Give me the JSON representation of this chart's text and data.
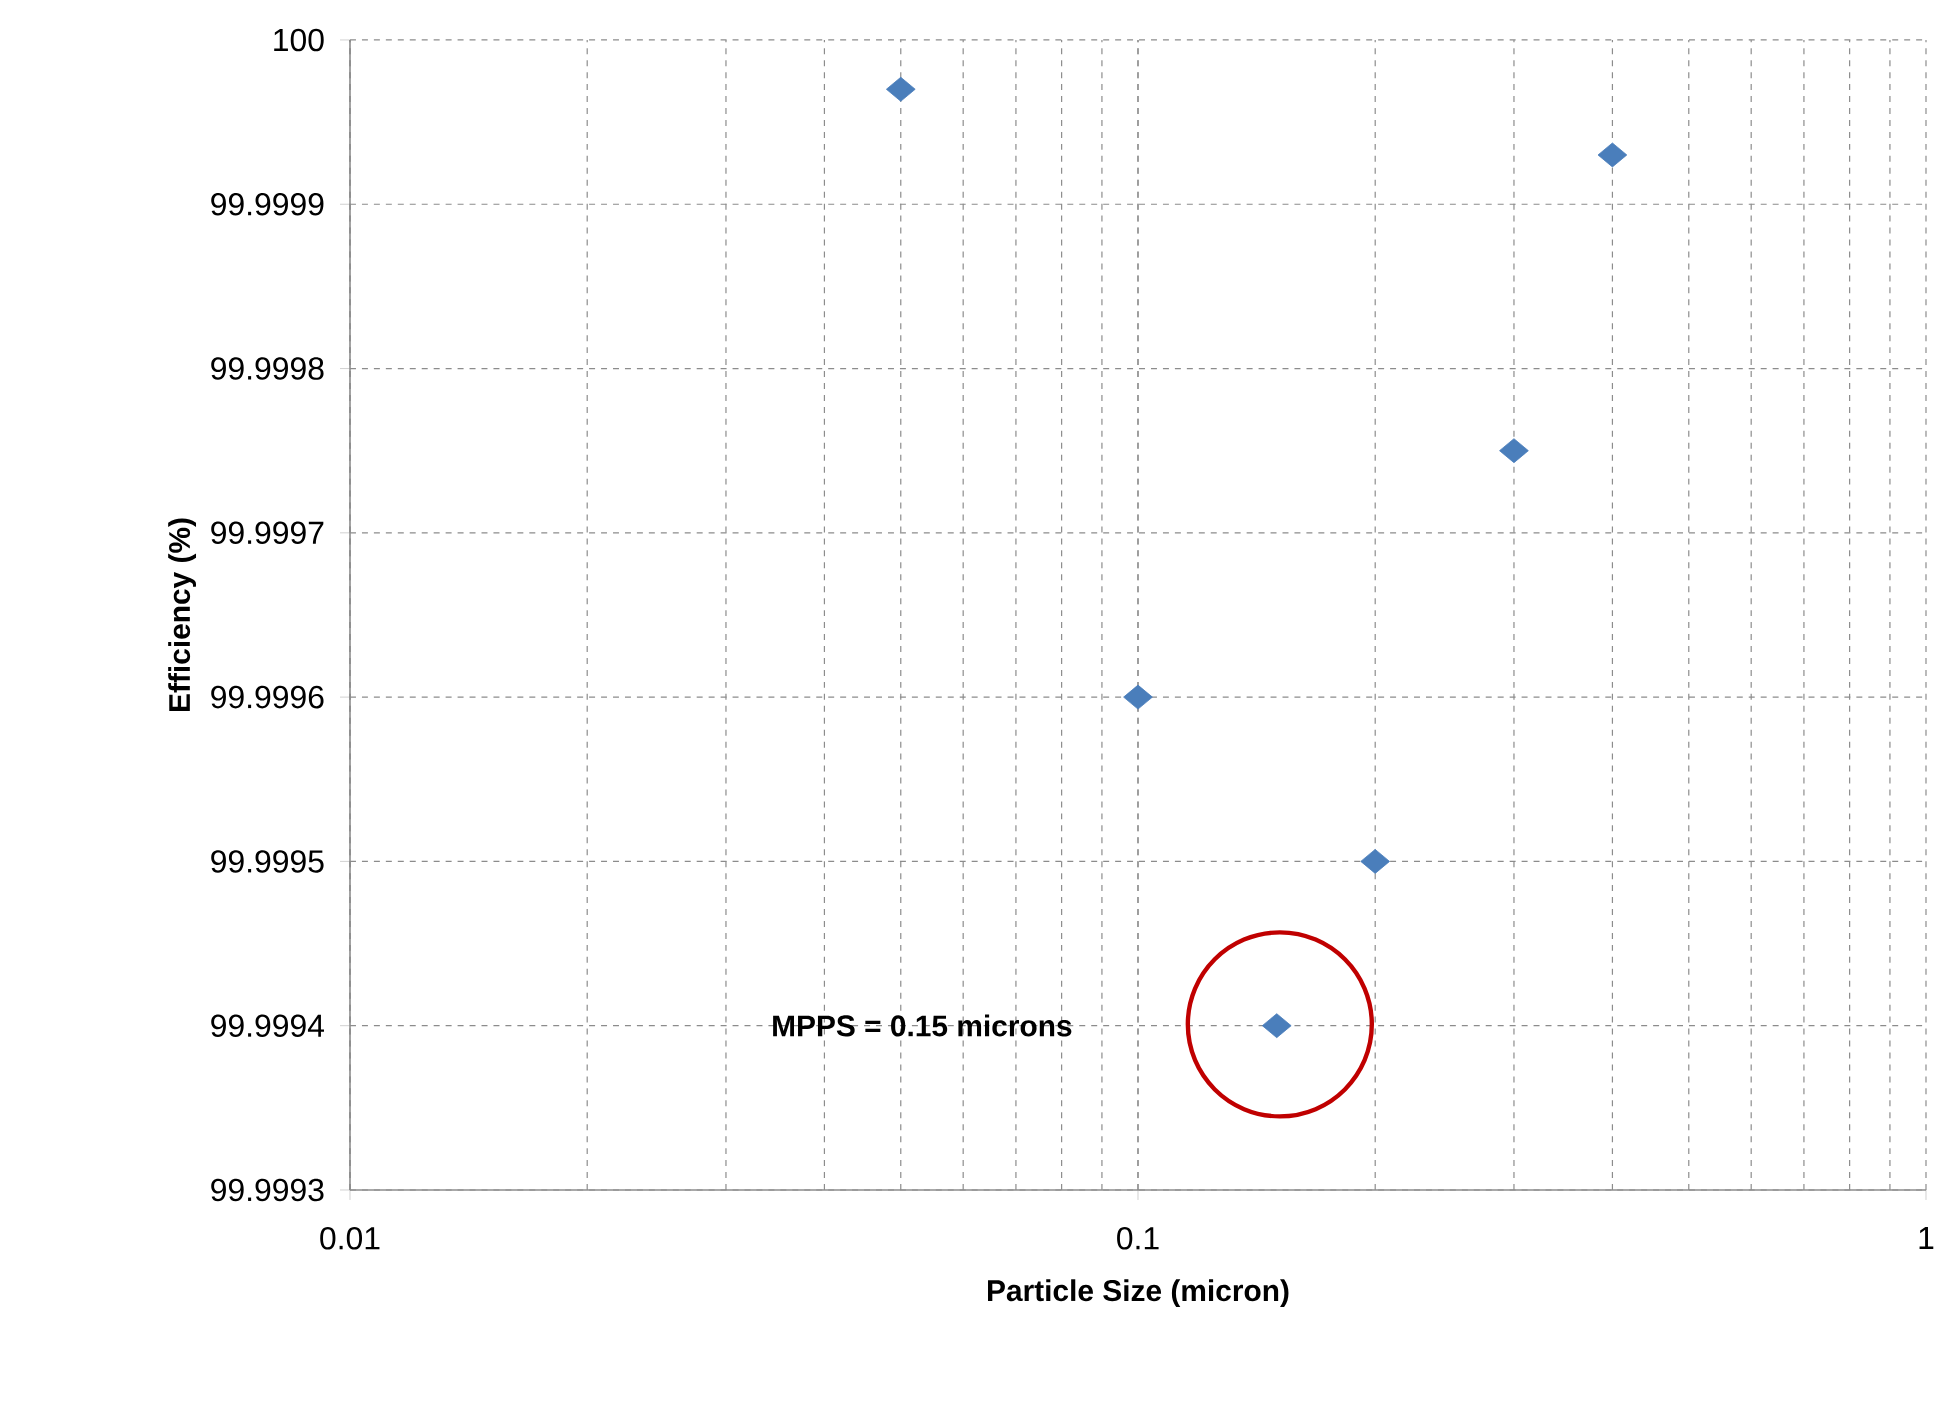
{
  "chart_data": {
    "type": "scatter",
    "xlabel": "Particle Size (micron)",
    "ylabel": "Efficiency (%)",
    "x": [
      0.05,
      0.1,
      0.15,
      0.2,
      0.3,
      0.4
    ],
    "series": [
      {
        "color": "#4a7ebb",
        "values": [
          99.99997,
          99.9996,
          99.9994,
          99.9995,
          99.99975,
          99.99993
        ]
      }
    ],
    "log": "x",
    "xlim": [
      0.01,
      1
    ],
    "xticks": [
      0.01,
      0.1,
      1
    ],
    "ylim": [
      99.9993,
      100
    ],
    "yticks": [
      99.9993,
      99.9994,
      99.9995,
      99.9996,
      99.9997,
      99.9998,
      99.9999,
      100
    ],
    "grid": true,
    "marker": "diamond",
    "annotations": [
      "MPPS = 0.15 microns"
    ]
  }
}
